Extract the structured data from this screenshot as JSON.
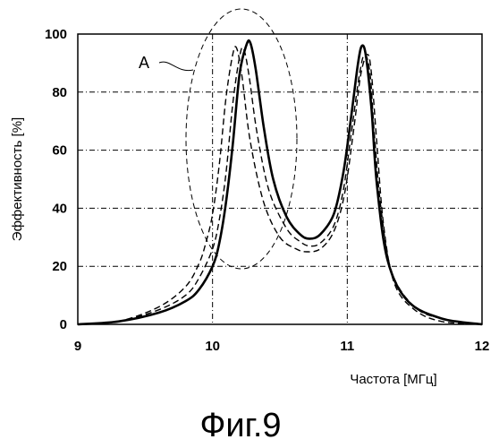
{
  "chart_data": {
    "type": "line",
    "ylabel": "Эффективность [%]",
    "xlabel": "Частота [МГц]",
    "caption": "Фиг.9",
    "annotation": "A",
    "xlim": [
      9,
      12
    ],
    "ylim": [
      0,
      100
    ],
    "xticks": [
      "9",
      "10",
      "11",
      "12"
    ],
    "yticks": [
      "0",
      "20",
      "40",
      "60",
      "80",
      "100"
    ],
    "grid": "dashed",
    "series": [
      {
        "style": "solid",
        "x": [
          9.0,
          9.3,
          9.6,
          9.8,
          9.9,
          10.0,
          10.05,
          10.1,
          10.15,
          10.2,
          10.25,
          10.28,
          10.32,
          10.38,
          10.45,
          10.55,
          10.65,
          10.72,
          10.8,
          10.9,
          10.97,
          11.03,
          11.08,
          11.11,
          11.14,
          11.18,
          11.22,
          11.3,
          11.45,
          11.7,
          12.0
        ],
        "y": [
          0,
          1,
          4,
          8,
          12,
          20,
          28,
          42,
          62,
          86,
          96,
          97,
          88,
          68,
          50,
          37,
          31,
          29.5,
          31,
          38,
          52,
          72,
          90,
          96,
          92,
          74,
          48,
          22,
          8,
          2,
          0
        ]
      },
      {
        "style": "dashed",
        "x": [
          9.0,
          9.3,
          9.6,
          9.8,
          9.9,
          10.0,
          10.05,
          10.1,
          10.15,
          10.2,
          10.23,
          10.27,
          10.33,
          10.42,
          10.55,
          10.65,
          10.72,
          10.8,
          10.9,
          10.97,
          11.03,
          11.09,
          11.13,
          11.17,
          11.2,
          11.25,
          11.33,
          11.5,
          11.7,
          12.0
        ],
        "y": [
          0,
          1,
          5,
          10,
          16,
          26,
          36,
          52,
          76,
          92,
          95,
          86,
          66,
          46,
          33,
          28.5,
          27,
          28,
          34,
          46,
          66,
          86,
          93,
          86,
          66,
          40,
          18,
          6,
          2,
          0
        ]
      },
      {
        "style": "dashed",
        "x": [
          9.0,
          9.3,
          9.6,
          9.8,
          9.9,
          9.95,
          10.0,
          10.05,
          10.1,
          10.15,
          10.18,
          10.22,
          10.28,
          10.38,
          10.5,
          10.62,
          10.7,
          10.8,
          10.9,
          10.98,
          11.05,
          11.1,
          11.15,
          11.18,
          11.22,
          11.27,
          11.35,
          11.5,
          11.7,
          12.0
        ],
        "y": [
          0,
          1,
          6,
          13,
          21,
          28,
          38,
          55,
          78,
          93,
          95,
          85,
          63,
          42,
          30,
          26,
          25,
          26,
          32,
          45,
          68,
          86,
          93,
          86,
          62,
          34,
          14,
          5,
          1,
          0
        ]
      }
    ]
  }
}
